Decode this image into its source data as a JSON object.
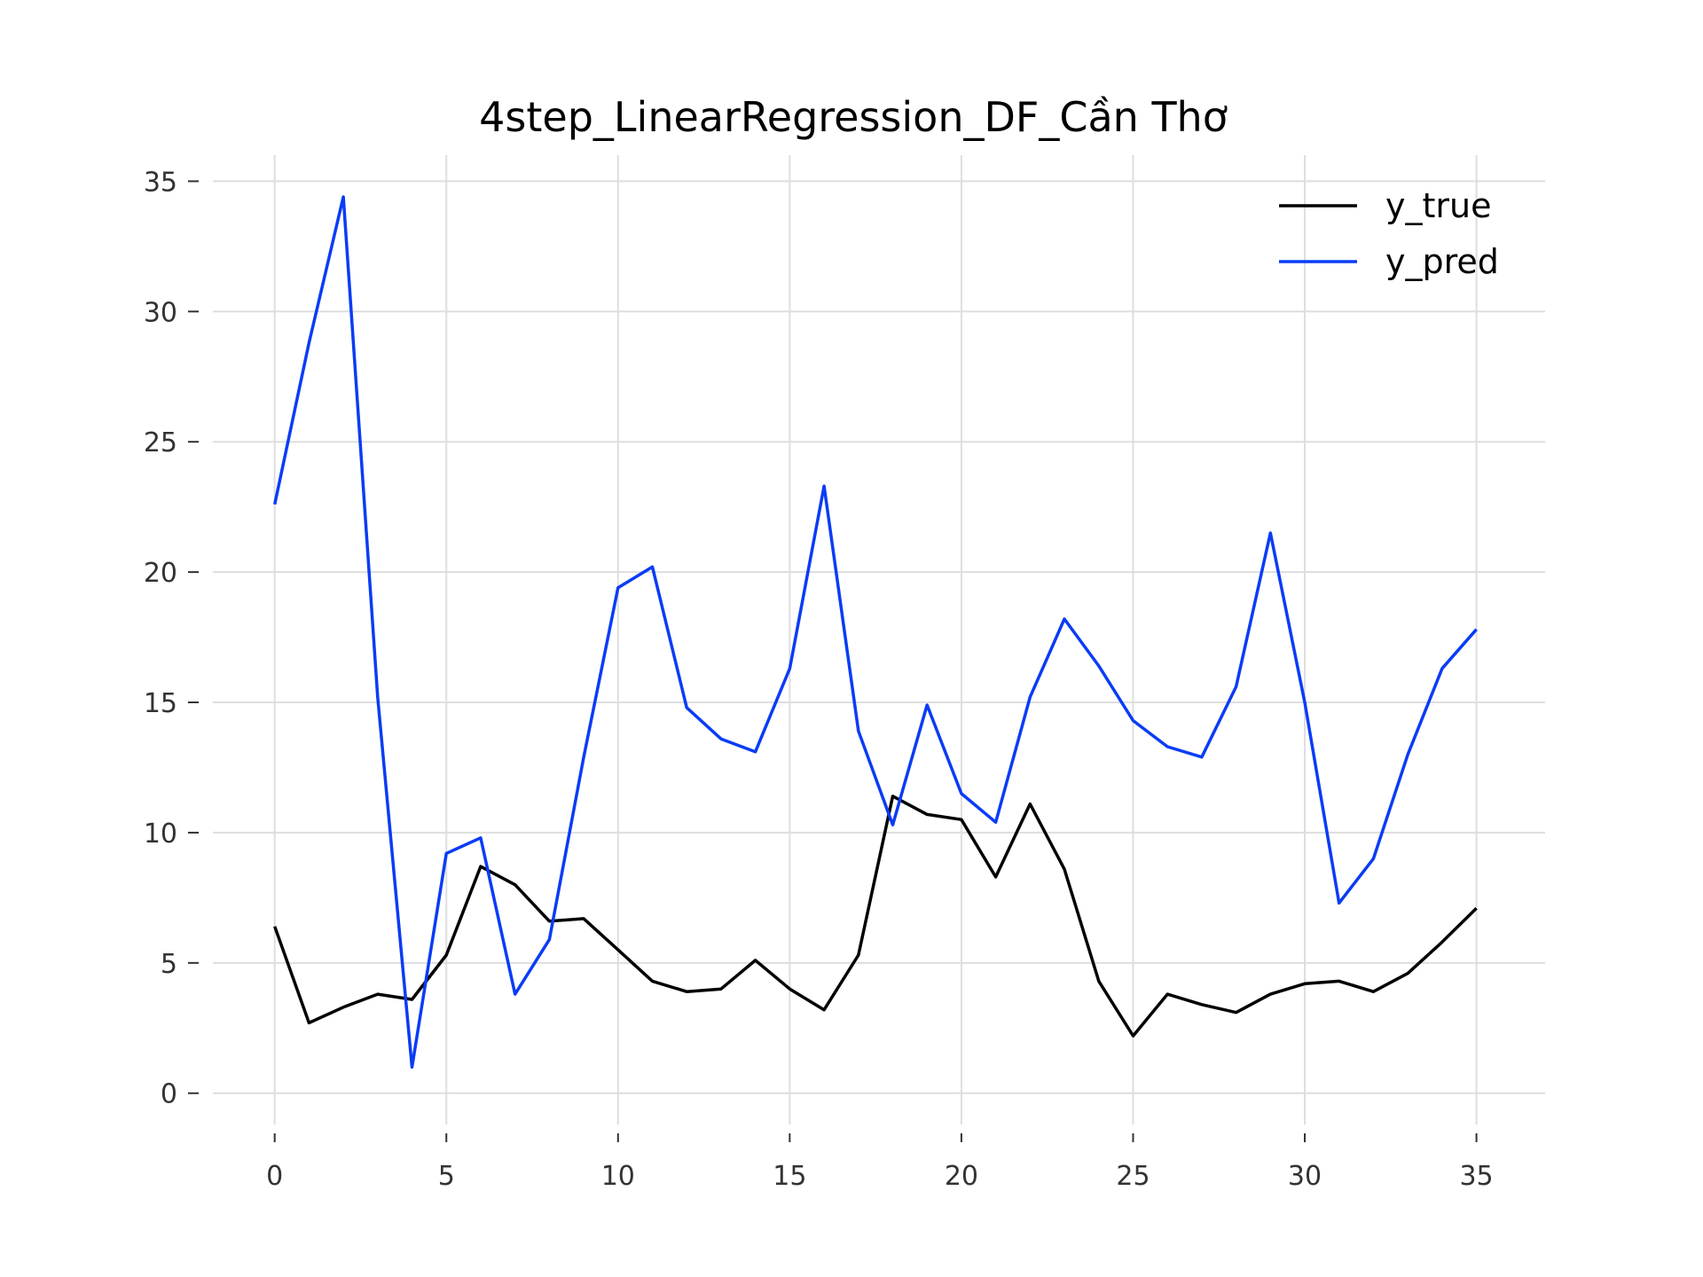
{
  "chart_data": {
    "type": "line",
    "title": "4step_LinearRegression_DF_Cần Thơ",
    "xlabel": "",
    "ylabel": "",
    "x": [
      0,
      1,
      2,
      3,
      4,
      5,
      6,
      7,
      8,
      9,
      10,
      11,
      12,
      13,
      14,
      15,
      16,
      17,
      18,
      19,
      20,
      21,
      22,
      23,
      24,
      25,
      26,
      27,
      28,
      29,
      30,
      31,
      32,
      33,
      34,
      35
    ],
    "xlim": [
      -1.8,
      37
    ],
    "ylim": [
      -1.2,
      36
    ],
    "xticks": [
      0,
      5,
      10,
      15,
      20,
      25,
      30,
      35
    ],
    "yticks": [
      0,
      5,
      10,
      15,
      20,
      25,
      30,
      35
    ],
    "grid": true,
    "legend_position": "top-right",
    "series": [
      {
        "name": "y_true",
        "color": "#000000",
        "values": [
          6.4,
          2.7,
          3.3,
          3.8,
          3.6,
          5.3,
          8.7,
          8.0,
          6.6,
          6.7,
          5.5,
          4.3,
          3.9,
          4.0,
          5.1,
          4.0,
          3.2,
          5.3,
          11.4,
          10.7,
          10.5,
          8.3,
          11.1,
          8.6,
          4.3,
          2.2,
          3.8,
          3.4,
          3.1,
          3.8,
          4.2,
          4.3,
          3.9,
          4.6,
          5.8,
          7.1
        ]
      },
      {
        "name": "y_pred",
        "color": "#0a3cf5",
        "values": [
          22.6,
          28.8,
          34.4,
          15.2,
          1.0,
          9.2,
          9.8,
          3.8,
          5.9,
          12.9,
          19.4,
          20.2,
          14.8,
          13.6,
          13.1,
          16.3,
          23.3,
          13.9,
          10.3,
          14.9,
          11.5,
          10.4,
          15.2,
          18.2,
          16.4,
          14.3,
          13.3,
          12.9,
          15.6,
          21.5,
          15.0,
          7.3,
          9.0,
          13.0,
          16.3,
          17.8
        ]
      }
    ]
  }
}
